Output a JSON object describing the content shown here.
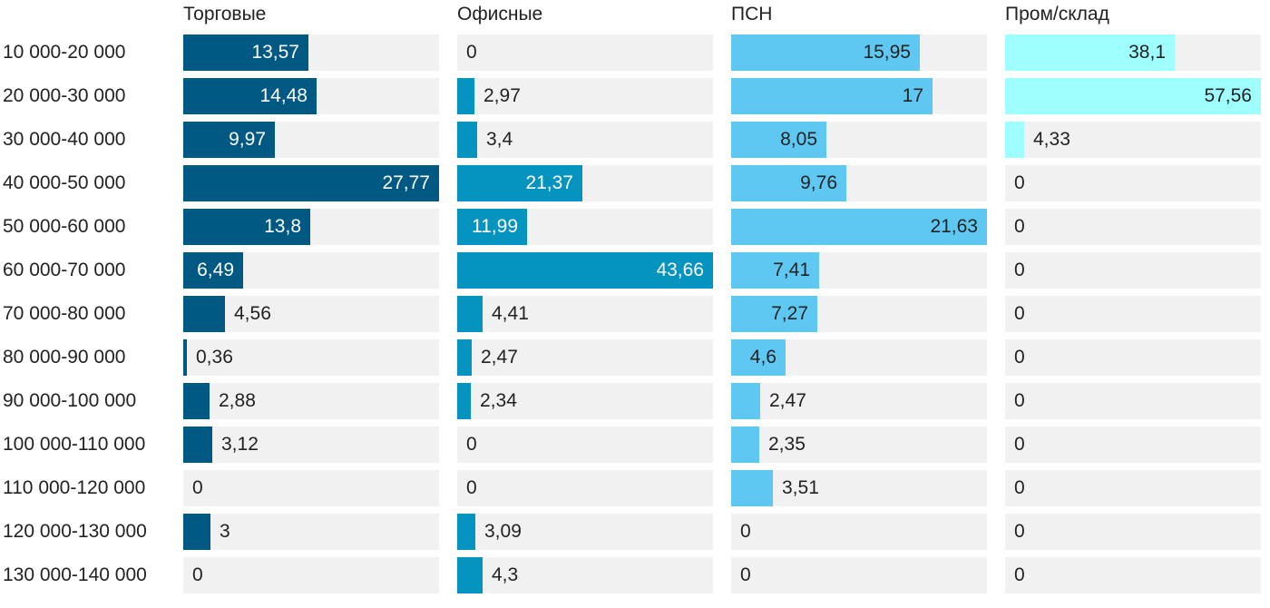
{
  "chart_data": {
    "type": "bar",
    "orientation": "horizontal",
    "layout": "small-multiples",
    "title": "",
    "categories": [
      "10 000-20 000",
      "20 000-30 000",
      "30 000-40 000",
      "40 000-50 000",
      "50 000-60 000",
      "60 000-70 000",
      "70 000-80 000",
      "80 000-90 000",
      "90 000-100 000",
      "100 000-110 000",
      "110 000-120 000",
      "120 000-130 000",
      "130 000-140 000"
    ],
    "series": [
      {
        "name": "Торговые",
        "color": "#005983",
        "label_inside_color": "#ffffff",
        "max": 27.77,
        "values": [
          13.57,
          14.48,
          9.97,
          27.77,
          13.8,
          6.49,
          4.56,
          0.36,
          2.88,
          3.12,
          0,
          3,
          0
        ],
        "labels": [
          "13,57",
          "14,48",
          "9,97",
          "27,77",
          "13,8",
          "6,49",
          "4,56",
          "0,36",
          "2,88",
          "3,12",
          "0",
          "3",
          "0"
        ]
      },
      {
        "name": "Офисные",
        "color": "#0593bf",
        "label_inside_color": "#ffffff",
        "max": 43.66,
        "values": [
          0,
          2.97,
          3.4,
          21.37,
          11.99,
          43.66,
          4.41,
          2.47,
          2.34,
          0,
          0,
          3.09,
          4.3
        ],
        "labels": [
          "0",
          "2,97",
          "3,4",
          "21,37",
          "11,99",
          "43,66",
          "4,41",
          "2,47",
          "2,34",
          "0",
          "0",
          "3,09",
          "4,3"
        ]
      },
      {
        "name": "ПСН",
        "color": "#5ec8f2",
        "label_inside_color": "#222222",
        "max": 21.63,
        "values": [
          15.95,
          17,
          8.05,
          9.76,
          21.63,
          7.41,
          7.27,
          4.6,
          2.47,
          2.35,
          3.51,
          0,
          0
        ],
        "labels": [
          "15,95",
          "17",
          "8,05",
          "9,76",
          "21,63",
          "7,41",
          "7,27",
          "4,6",
          "2,47",
          "2,35",
          "3,51",
          "0",
          "0"
        ]
      },
      {
        "name": "Пром/склад",
        "color": "#9ffefe",
        "label_inside_color": "#222222",
        "max": 57.56,
        "values": [
          38.1,
          57.56,
          4.33,
          0,
          0,
          0,
          0,
          0,
          0,
          0,
          0,
          0,
          0
        ],
        "labels": [
          "38,1",
          "57,56",
          "4,33",
          "0",
          "0",
          "0",
          "0",
          "0",
          "0",
          "0",
          "0",
          "0",
          "0"
        ]
      }
    ],
    "value_format": "decimal-comma",
    "legend": "none",
    "grid": false
  }
}
